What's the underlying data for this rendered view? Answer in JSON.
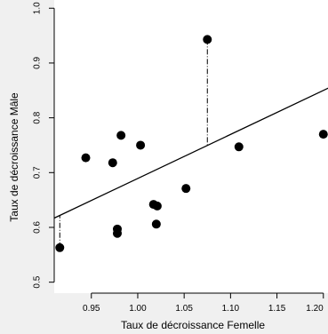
{
  "chart_data": {
    "type": "scatter",
    "title": "",
    "xlabel": "Taux de décroissance Femelle",
    "ylabel": "Taux de décroissance Mâle",
    "xlim": [
      0.91,
      1.205
    ],
    "ylim": [
      0.48,
      1.015
    ],
    "grid": false,
    "x_ticks": [
      0.95,
      1.0,
      1.05,
      1.1,
      1.15,
      1.2
    ],
    "x_tick_labels": [
      "0.95",
      "1.00",
      "1.05",
      "1.10",
      "1.15",
      "1.20"
    ],
    "y_ticks": [
      0.5,
      0.6,
      0.7,
      0.8,
      0.9,
      1.0
    ],
    "y_tick_labels": [
      "0.5",
      "0.6",
      "0.7",
      "0.8",
      "0.9",
      "1.0"
    ],
    "points": [
      {
        "x": 0.916,
        "y": 0.563
      },
      {
        "x": 0.944,
        "y": 0.727
      },
      {
        "x": 0.973,
        "y": 0.718
      },
      {
        "x": 0.978,
        "y": 0.597
      },
      {
        "x": 0.978,
        "y": 0.589
      },
      {
        "x": 0.982,
        "y": 0.768
      },
      {
        "x": 1.003,
        "y": 0.75
      },
      {
        "x": 1.017,
        "y": 0.642
      },
      {
        "x": 1.021,
        "y": 0.639
      },
      {
        "x": 1.02,
        "y": 0.606
      },
      {
        "x": 1.052,
        "y": 0.671
      },
      {
        "x": 1.075,
        "y": 0.943
      },
      {
        "x": 1.109,
        "y": 0.747
      },
      {
        "x": 1.2,
        "y": 0.77
      }
    ],
    "regression_line": {
      "x": [
        0.91,
        1.215
      ],
      "y": [
        0.617,
        0.862
      ]
    },
    "residual_segments": [
      {
        "x": 0.916,
        "y_point": 0.563,
        "y_line": 0.622
      },
      {
        "x": 1.075,
        "y_point": 0.943,
        "y_line": 0.75
      }
    ],
    "colors": {
      "marker": "#000000",
      "line": "#000000",
      "background": "#f0f0f0",
      "plot_area": "#ffffff"
    }
  }
}
